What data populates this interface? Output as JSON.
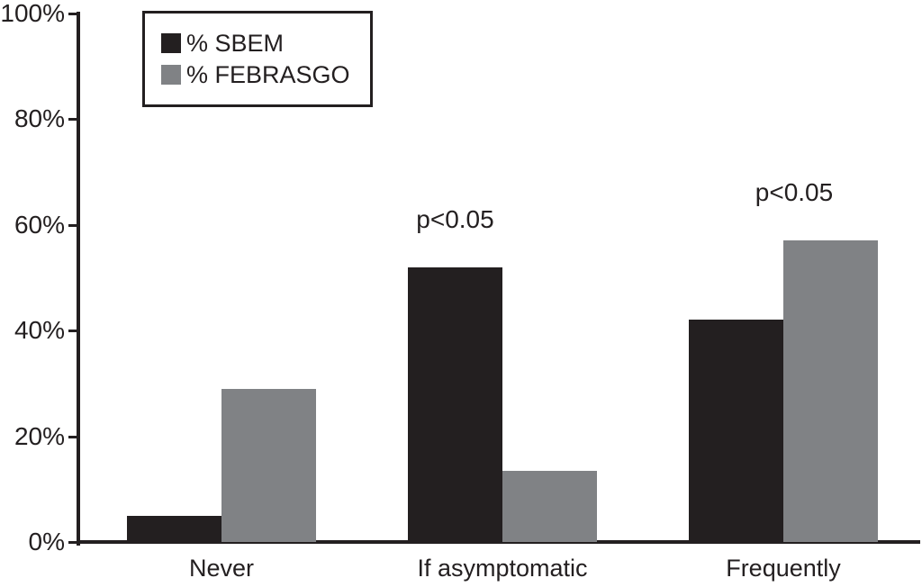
{
  "chart_data": {
    "type": "bar",
    "title": "",
    "xlabel": "",
    "ylabel": "",
    "categories": [
      "Never",
      "If asymptomatic",
      "Frequently"
    ],
    "series": [
      {
        "name": "% SBEM",
        "color": "#231f20",
        "values": [
          5,
          52,
          42
        ]
      },
      {
        "name": "% FEBRASGO",
        "color": "#808285",
        "values": [
          29,
          13.5,
          57
        ]
      }
    ],
    "ylim": [
      0,
      100
    ],
    "y_ticks": [
      0,
      20,
      40,
      60,
      80,
      100
    ],
    "y_tick_labels": [
      "0%",
      "20%",
      "40%",
      "60%",
      "80%",
      "100%"
    ],
    "grid": false,
    "legend_position": "top-left",
    "annotations": [
      {
        "category_index": 1,
        "text": "p<0.05",
        "anchor": "first-bar"
      },
      {
        "category_index": 2,
        "text": "p<0.05",
        "anchor": "group-center"
      }
    ],
    "axis_color": "#231f20",
    "background": "#ffffff"
  }
}
